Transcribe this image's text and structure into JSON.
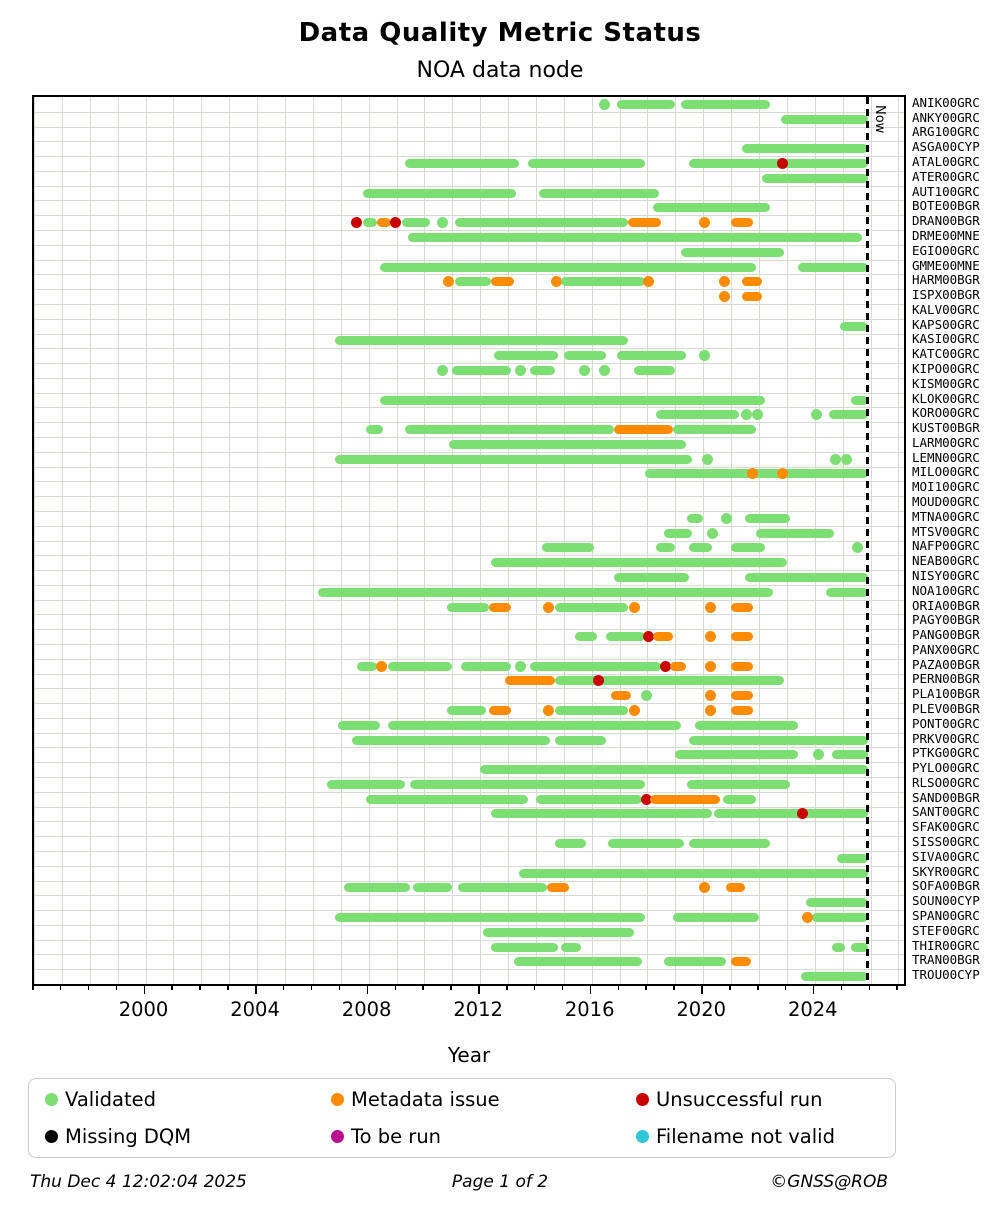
{
  "title": "Data Quality Metric Status",
  "subtitle": "NOA data node",
  "footer": {
    "left": "Thu Dec  4 12:02:04 2025",
    "center": "Page 1 of 2",
    "right": "©GNSS@ROB"
  },
  "legend": [
    {
      "label": "Validated",
      "color": "#7dde73",
      "key": "v"
    },
    {
      "label": "Metadata issue",
      "color": "#ff8c00",
      "key": "m"
    },
    {
      "label": "Unsuccessful run",
      "color": "#c80000",
      "key": "u"
    },
    {
      "label": "Missing DQM",
      "color": "#000000",
      "key": "k"
    },
    {
      "label": "To be run",
      "color": "#bb0f8f",
      "key": "t"
    },
    {
      "label": "Filename not valid",
      "color": "#2ec8d8",
      "key": "f"
    }
  ],
  "chart_data": {
    "type": "bar",
    "subtype": "status-timeline-gantt",
    "title": "Data Quality Metric Status",
    "subtitle": "NOA data node",
    "xlabel": "Year",
    "x_range": [
      1996.0,
      2027.2
    ],
    "x_ticks_major": [
      2000,
      2004,
      2008,
      2012,
      2016,
      2020,
      2024
    ],
    "x_minor_step": 1,
    "grid": true,
    "now_line": {
      "label": "Now",
      "year": 2025.9
    },
    "status_colors": {
      "v": "#7dde73",
      "m": "#ff8c00",
      "u": "#c80000",
      "k": "#000000",
      "t": "#bb0f8f",
      "f": "#2ec8d8"
    },
    "status_names": {
      "v": "Validated",
      "m": "Metadata issue",
      "u": "Unsuccessful run",
      "k": "Missing DQM",
      "t": "To be run",
      "f": "Filename not valid"
    },
    "stations": [
      {
        "name": "ANIK00GRC",
        "segments": [
          [
            2016.3,
            2016.6,
            "v"
          ],
          [
            2016.9,
            2019.0,
            "v"
          ],
          [
            2019.2,
            2022.4,
            "v"
          ]
        ]
      },
      {
        "name": "ANKY00GRC",
        "segments": [
          [
            2022.8,
            2025.9,
            "v"
          ]
        ]
      },
      {
        "name": "ARG100GRC",
        "segments": []
      },
      {
        "name": "ASGA00CYP",
        "segments": [
          [
            2021.4,
            2025.9,
            "v"
          ]
        ]
      },
      {
        "name": "ATAL00GRC",
        "segments": [
          [
            2009.3,
            2013.4,
            "v"
          ],
          [
            2013.7,
            2017.9,
            "v"
          ],
          [
            2019.5,
            2025.9,
            "v"
          ],
          [
            2022.7,
            2023.0,
            "u"
          ]
        ]
      },
      {
        "name": "ATER00GRC",
        "segments": [
          [
            2022.1,
            2025.9,
            "v"
          ]
        ]
      },
      {
        "name": "AUT100GRC",
        "segments": [
          [
            2007.8,
            2013.3,
            "v"
          ],
          [
            2014.1,
            2018.4,
            "v"
          ]
        ]
      },
      {
        "name": "BOTE00BGR",
        "segments": [
          [
            2018.2,
            2022.4,
            "v"
          ]
        ]
      },
      {
        "name": "DRAN00BGR",
        "segments": [
          [
            2007.4,
            2007.7,
            "u"
          ],
          [
            2007.8,
            2008.3,
            "v"
          ],
          [
            2008.3,
            2008.8,
            "m"
          ],
          [
            2008.8,
            2009.1,
            "u"
          ],
          [
            2009.2,
            2010.2,
            "v"
          ],
          [
            2010.5,
            2010.8,
            "v"
          ],
          [
            2011.1,
            2017.3,
            "v"
          ],
          [
            2017.3,
            2018.5,
            "m"
          ],
          [
            2019.9,
            2020.2,
            "m"
          ],
          [
            2021.0,
            2021.8,
            "m"
          ]
        ]
      },
      {
        "name": "DRME00MNE",
        "segments": [
          [
            2009.4,
            2025.7,
            "v"
          ]
        ]
      },
      {
        "name": "EGIO00GRC",
        "segments": [
          [
            2019.2,
            2022.9,
            "v"
          ]
        ]
      },
      {
        "name": "GMME00MNE",
        "segments": [
          [
            2008.4,
            2021.9,
            "v"
          ],
          [
            2023.4,
            2025.9,
            "v"
          ]
        ]
      },
      {
        "name": "HARM00BGR",
        "segments": [
          [
            2010.7,
            2011.0,
            "m"
          ],
          [
            2011.1,
            2012.4,
            "v"
          ],
          [
            2012.4,
            2013.2,
            "m"
          ],
          [
            2014.6,
            2014.9,
            "m"
          ],
          [
            2014.9,
            2017.9,
            "v"
          ],
          [
            2017.9,
            2018.2,
            "m"
          ],
          [
            2020.6,
            2020.9,
            "m"
          ],
          [
            2021.4,
            2022.1,
            "m"
          ]
        ]
      },
      {
        "name": "ISPX00BGR",
        "segments": [
          [
            2020.6,
            2020.9,
            "m"
          ],
          [
            2021.4,
            2022.1,
            "m"
          ]
        ]
      },
      {
        "name": "KALV00GRC",
        "segments": []
      },
      {
        "name": "KAPS00GRC",
        "segments": [
          [
            2024.9,
            2025.9,
            "v"
          ]
        ]
      },
      {
        "name": "KASI00GRC",
        "segments": [
          [
            2006.8,
            2017.3,
            "v"
          ]
        ]
      },
      {
        "name": "KATC00GRC",
        "segments": [
          [
            2012.5,
            2014.8,
            "v"
          ],
          [
            2015.0,
            2016.5,
            "v"
          ],
          [
            2016.9,
            2019.4,
            "v"
          ],
          [
            2019.9,
            2020.2,
            "v"
          ]
        ]
      },
      {
        "name": "KIPO00GRC",
        "segments": [
          [
            2010.5,
            2010.8,
            "v"
          ],
          [
            2011.0,
            2013.1,
            "v"
          ],
          [
            2013.3,
            2013.6,
            "v"
          ],
          [
            2013.8,
            2014.7,
            "v"
          ],
          [
            2015.6,
            2015.9,
            "v"
          ],
          [
            2016.3,
            2016.6,
            "v"
          ],
          [
            2017.5,
            2019.0,
            "v"
          ]
        ]
      },
      {
        "name": "KISM00GRC",
        "segments": []
      },
      {
        "name": "KLOK00GRC",
        "segments": [
          [
            2008.4,
            2022.2,
            "v"
          ],
          [
            2025.3,
            2025.9,
            "v"
          ]
        ]
      },
      {
        "name": "KORO00GRC",
        "segments": [
          [
            2018.3,
            2021.3,
            "v"
          ],
          [
            2021.4,
            2021.7,
            "v"
          ],
          [
            2021.8,
            2022.1,
            "v"
          ],
          [
            2023.9,
            2024.2,
            "v"
          ],
          [
            2024.5,
            2025.9,
            "v"
          ]
        ]
      },
      {
        "name": "KUST00BGR",
        "segments": [
          [
            2007.9,
            2008.5,
            "v"
          ],
          [
            2009.3,
            2016.8,
            "v"
          ],
          [
            2016.8,
            2018.9,
            "m"
          ],
          [
            2018.9,
            2021.9,
            "v"
          ]
        ]
      },
      {
        "name": "LARM00GRC",
        "segments": [
          [
            2010.9,
            2019.4,
            "v"
          ]
        ]
      },
      {
        "name": "LEMN00GRC",
        "segments": [
          [
            2006.8,
            2019.6,
            "v"
          ],
          [
            2020.0,
            2020.3,
            "v"
          ],
          [
            2024.6,
            2024.9,
            "v"
          ],
          [
            2025.0,
            2025.3,
            "v"
          ]
        ]
      },
      {
        "name": "MILO00GRC",
        "segments": [
          [
            2017.9,
            2025.9,
            "v"
          ],
          [
            2021.6,
            2021.9,
            "m"
          ],
          [
            2022.7,
            2023.0,
            "m"
          ]
        ]
      },
      {
        "name": "MOI100GRC",
        "segments": []
      },
      {
        "name": "MOUD00GRC",
        "segments": []
      },
      {
        "name": "MTNA00GRC",
        "segments": [
          [
            2019.4,
            2020.0,
            "v"
          ],
          [
            2020.7,
            2021.0,
            "v"
          ],
          [
            2021.5,
            2023.1,
            "v"
          ]
        ]
      },
      {
        "name": "MTSV00GRC",
        "segments": [
          [
            2018.6,
            2019.6,
            "v"
          ],
          [
            2020.2,
            2020.5,
            "v"
          ],
          [
            2021.9,
            2024.7,
            "v"
          ]
        ]
      },
      {
        "name": "NAFP00GRC",
        "segments": [
          [
            2014.2,
            2016.1,
            "v"
          ],
          [
            2018.3,
            2019.0,
            "v"
          ],
          [
            2019.5,
            2020.3,
            "v"
          ],
          [
            2021.0,
            2022.2,
            "v"
          ],
          [
            2025.4,
            2025.7,
            "v"
          ]
        ]
      },
      {
        "name": "NEAB00GRC",
        "segments": [
          [
            2012.4,
            2023.0,
            "v"
          ]
        ]
      },
      {
        "name": "NISY00GRC",
        "segments": [
          [
            2016.8,
            2019.5,
            "v"
          ],
          [
            2021.5,
            2025.9,
            "v"
          ]
        ]
      },
      {
        "name": "NOA100GRC",
        "segments": [
          [
            2006.2,
            2022.5,
            "v"
          ],
          [
            2024.4,
            2025.9,
            "v"
          ]
        ]
      },
      {
        "name": "ORIA00BGR",
        "segments": [
          [
            2010.8,
            2012.3,
            "v"
          ],
          [
            2012.3,
            2013.1,
            "m"
          ],
          [
            2014.3,
            2014.6,
            "m"
          ],
          [
            2014.7,
            2017.3,
            "v"
          ],
          [
            2017.4,
            2017.7,
            "m"
          ],
          [
            2020.1,
            2020.4,
            "m"
          ],
          [
            2021.0,
            2021.8,
            "m"
          ]
        ]
      },
      {
        "name": "PAGY00BGR",
        "segments": []
      },
      {
        "name": "PANG00BGR",
        "segments": [
          [
            2015.4,
            2016.2,
            "v"
          ],
          [
            2016.5,
            2017.9,
            "v"
          ],
          [
            2017.9,
            2018.2,
            "u"
          ],
          [
            2018.2,
            2018.9,
            "m"
          ],
          [
            2020.1,
            2020.4,
            "m"
          ],
          [
            2021.0,
            2021.8,
            "m"
          ]
        ]
      },
      {
        "name": "PANX00GRC",
        "segments": []
      },
      {
        "name": "PAZA00BGR",
        "segments": [
          [
            2007.6,
            2008.3,
            "v"
          ],
          [
            2008.3,
            2008.6,
            "m"
          ],
          [
            2008.7,
            2011.0,
            "v"
          ],
          [
            2011.3,
            2013.1,
            "v"
          ],
          [
            2013.3,
            2013.6,
            "v"
          ],
          [
            2013.8,
            2018.5,
            "v"
          ],
          [
            2018.5,
            2018.8,
            "u"
          ],
          [
            2018.8,
            2019.4,
            "m"
          ],
          [
            2020.1,
            2020.4,
            "m"
          ],
          [
            2021.0,
            2021.8,
            "m"
          ]
        ]
      },
      {
        "name": "PERN00BGR",
        "segments": [
          [
            2012.9,
            2014.7,
            "m"
          ],
          [
            2014.7,
            2022.9,
            "v"
          ],
          [
            2016.1,
            2016.4,
            "u"
          ]
        ]
      },
      {
        "name": "PLA100BGR",
        "segments": [
          [
            2016.7,
            2017.4,
            "m"
          ],
          [
            2017.8,
            2018.1,
            "v"
          ],
          [
            2020.1,
            2020.4,
            "m"
          ],
          [
            2021.0,
            2021.8,
            "m"
          ]
        ]
      },
      {
        "name": "PLEV00BGR",
        "segments": [
          [
            2010.8,
            2012.2,
            "v"
          ],
          [
            2012.3,
            2013.1,
            "m"
          ],
          [
            2014.3,
            2014.6,
            "m"
          ],
          [
            2014.7,
            2017.3,
            "v"
          ],
          [
            2017.4,
            2017.7,
            "m"
          ],
          [
            2020.1,
            2020.4,
            "m"
          ],
          [
            2021.0,
            2021.8,
            "m"
          ]
        ]
      },
      {
        "name": "PONT00GRC",
        "segments": [
          [
            2006.9,
            2008.4,
            "v"
          ],
          [
            2008.7,
            2019.2,
            "v"
          ],
          [
            2019.7,
            2023.4,
            "v"
          ]
        ]
      },
      {
        "name": "PRKV00GRC",
        "segments": [
          [
            2007.4,
            2014.5,
            "v"
          ],
          [
            2014.7,
            2016.5,
            "v"
          ],
          [
            2019.5,
            2025.9,
            "v"
          ]
        ]
      },
      {
        "name": "PTKG00GRC",
        "segments": [
          [
            2019.0,
            2023.4,
            "v"
          ],
          [
            2024.0,
            2024.3,
            "v"
          ],
          [
            2024.6,
            2025.9,
            "v"
          ]
        ]
      },
      {
        "name": "PYLO00GRC",
        "segments": [
          [
            2012.0,
            2025.9,
            "v"
          ]
        ]
      },
      {
        "name": "RLSO00GRC",
        "segments": [
          [
            2006.5,
            2009.3,
            "v"
          ],
          [
            2009.5,
            2017.9,
            "v"
          ],
          [
            2019.4,
            2023.1,
            "v"
          ]
        ]
      },
      {
        "name": "SAND00BGR",
        "segments": [
          [
            2007.9,
            2013.7,
            "v"
          ],
          [
            2014.0,
            2017.8,
            "v"
          ],
          [
            2017.8,
            2018.1,
            "u"
          ],
          [
            2018.1,
            2020.6,
            "m"
          ],
          [
            2020.7,
            2021.9,
            "v"
          ]
        ]
      },
      {
        "name": "SANT00GRC",
        "segments": [
          [
            2012.4,
            2020.3,
            "v"
          ],
          [
            2020.4,
            2025.9,
            "v"
          ],
          [
            2023.4,
            2023.7,
            "u"
          ]
        ]
      },
      {
        "name": "SFAK00GRC",
        "segments": []
      },
      {
        "name": "SISS00GRC",
        "segments": [
          [
            2014.7,
            2015.8,
            "v"
          ],
          [
            2016.6,
            2019.3,
            "v"
          ],
          [
            2019.5,
            2022.4,
            "v"
          ]
        ]
      },
      {
        "name": "SIVA00GRC",
        "segments": [
          [
            2024.8,
            2025.9,
            "v"
          ]
        ]
      },
      {
        "name": "SKYR00GRC",
        "segments": [
          [
            2013.4,
            2025.9,
            "v"
          ]
        ]
      },
      {
        "name": "SOFA00BGR",
        "segments": [
          [
            2007.1,
            2009.5,
            "v"
          ],
          [
            2009.6,
            2011.0,
            "v"
          ],
          [
            2011.2,
            2014.4,
            "v"
          ],
          [
            2014.4,
            2015.2,
            "m"
          ],
          [
            2019.9,
            2020.2,
            "m"
          ],
          [
            2020.8,
            2021.5,
            "m"
          ]
        ]
      },
      {
        "name": "SOUN00CYP",
        "segments": [
          [
            2023.7,
            2025.9,
            "v"
          ]
        ]
      },
      {
        "name": "SPAN00GRC",
        "segments": [
          [
            2006.8,
            2017.9,
            "v"
          ],
          [
            2018.9,
            2022.0,
            "v"
          ],
          [
            2023.9,
            2025.9,
            "v"
          ],
          [
            2023.6,
            2023.9,
            "m"
          ]
        ]
      },
      {
        "name": "STEF00GRC",
        "segments": [
          [
            2012.1,
            2017.5,
            "v"
          ]
        ]
      },
      {
        "name": "THIR00GRC",
        "segments": [
          [
            2012.4,
            2014.8,
            "v"
          ],
          [
            2014.9,
            2015.6,
            "v"
          ],
          [
            2024.6,
            2025.1,
            "v"
          ],
          [
            2025.3,
            2025.9,
            "v"
          ]
        ]
      },
      {
        "name": "TRAN00BGR",
        "segments": [
          [
            2013.2,
            2017.8,
            "v"
          ],
          [
            2018.6,
            2020.8,
            "v"
          ],
          [
            2021.0,
            2021.7,
            "m"
          ]
        ]
      },
      {
        "name": "TROU00CYP",
        "segments": [
          [
            2023.5,
            2025.9,
            "v"
          ]
        ]
      }
    ]
  }
}
